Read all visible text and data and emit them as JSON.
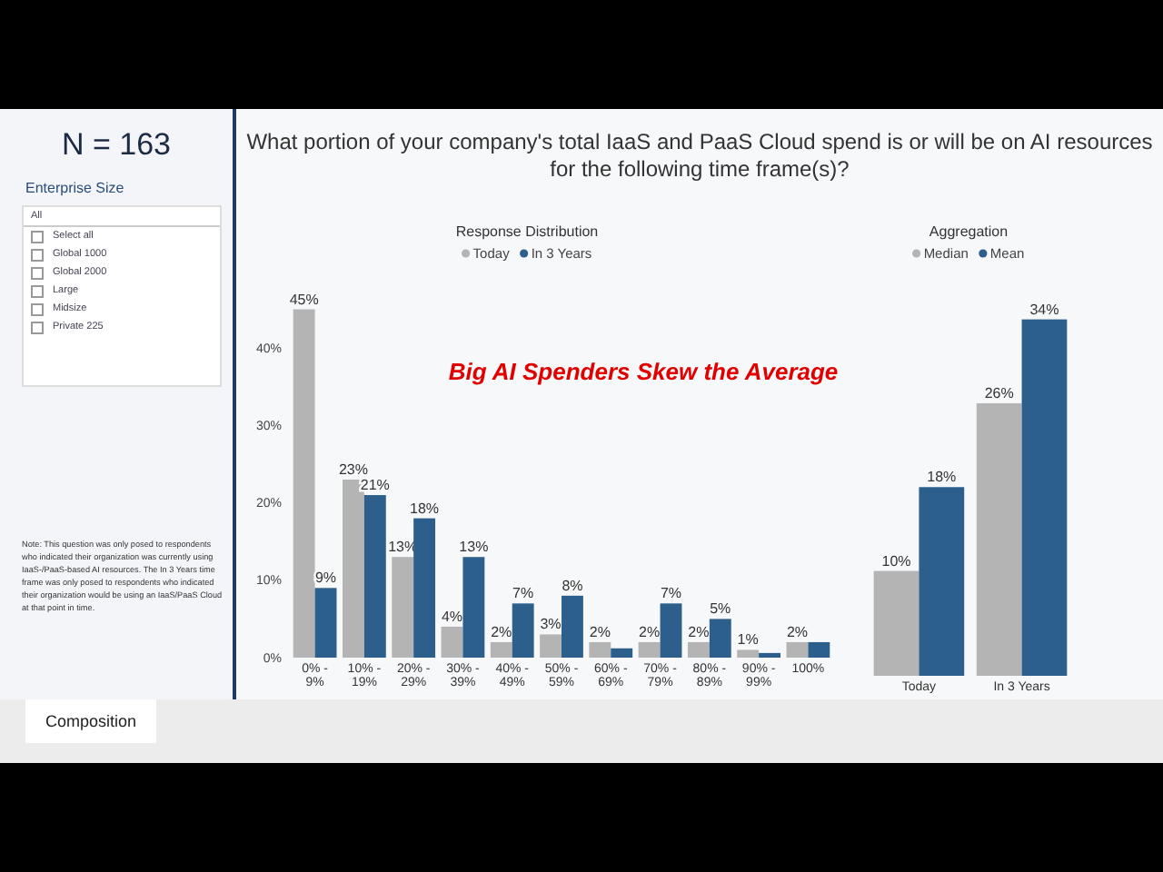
{
  "chart_data": [
    {
      "type": "bar",
      "title": "Response Distribution",
      "categories": [
        "0% - 9%",
        "10% - 19%",
        "20% - 29%",
        "30% - 39%",
        "40% - 49%",
        "50% - 59%",
        "60% - 69%",
        "70% - 79%",
        "80% - 89%",
        "90% - 99%",
        "100%"
      ],
      "series": [
        {
          "name": "Today",
          "color": "#b4b4b4",
          "values": [
            45,
            23,
            13,
            4,
            2,
            3,
            2,
            2,
            2,
            1,
            2
          ],
          "value_labels": [
            "45%",
            "23%",
            "13%",
            "4%",
            "2%",
            "3%",
            "2%",
            "2%",
            "2%",
            "1%",
            "2%"
          ]
        },
        {
          "name": "In 3 Years",
          "color": "#2c5f8c",
          "values": [
            9,
            21,
            18,
            13,
            7,
            8,
            1.2,
            7,
            5,
            0.6,
            2
          ],
          "value_labels": [
            "9%",
            "21%",
            "18%",
            "13%",
            "7%",
            "8%",
            null,
            "7%",
            "5%",
            null,
            null
          ]
        }
      ],
      "ylim": [
        0,
        46
      ],
      "yticks": [
        {
          "value": 0,
          "label": "0%"
        },
        {
          "value": 10,
          "label": "10%"
        },
        {
          "value": 20,
          "label": "20%"
        },
        {
          "value": 30,
          "label": "30%"
        },
        {
          "value": 40,
          "label": "40%"
        }
      ],
      "tick_labels": true,
      "legend": "top",
      "annotations": [
        "What portion of your company's total IaaS and PaaS Cloud spend is or will be on AI resources for the following time frame(s)?",
        "Big AI Spenders Skew the Average",
        "N = 163",
        "Enterprise Size",
        "All",
        "Select all",
        "Global 1000",
        "Global 2000",
        "Large",
        "Midsize",
        "Private 225",
        "Note: This question was only posed to respondents who indicated their organization was currently using IaaS-/PaaS-based AI resources. The In 3 Years time frame was only posed to respondents who indicated their organization would be using an IaaS/PaaS Cloud at that point in time.",
        "Composition"
      ]
    },
    {
      "type": "bar",
      "title": "Aggregation",
      "relative": false,
      "categories": [
        "Today",
        "In 3 Years"
      ],
      "series": [
        {
          "name": "Median",
          "color": "#b4b4b4",
          "values": [
            10,
            26
          ],
          "value_labels": [
            "10%",
            "26%"
          ]
        },
        {
          "name": "Mean",
          "color": "#2c5f8c",
          "values": [
            18,
            34
          ],
          "value_labels": [
            "18%",
            "34%"
          ]
        }
      ],
      "tick_labels": "x",
      "legend": "top"
    }
  ]
}
